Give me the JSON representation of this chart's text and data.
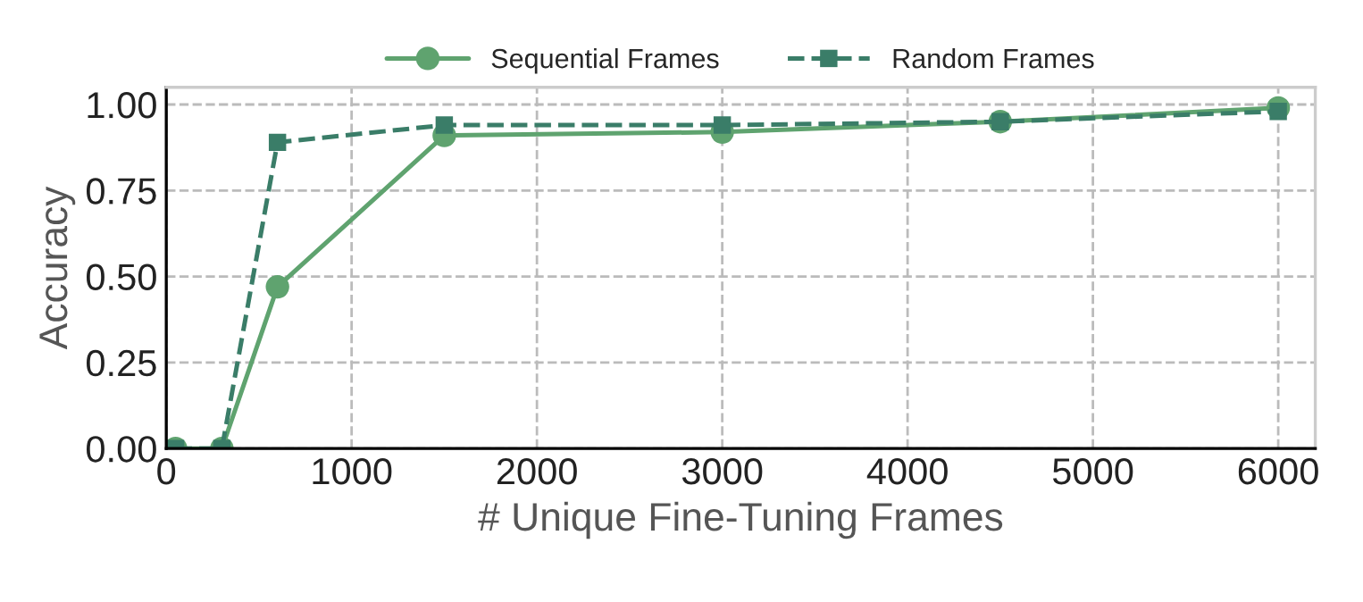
{
  "chart_data": {
    "type": "line",
    "xlabel": "# Unique Fine-Tuning Frames",
    "ylabel": "Accuracy",
    "x": [
      50,
      300,
      600,
      1500,
      3000,
      4500,
      6000
    ],
    "series": [
      {
        "name": "Sequential Frames",
        "color": "#5fa36f",
        "values": [
          0,
          0,
          0.47,
          0.91,
          0.92,
          0.95,
          0.99
        ],
        "marker": "circle",
        "line_style": "solid"
      },
      {
        "name": "Random Frames",
        "color": "#3a7d68",
        "values": [
          0,
          0,
          0.89,
          0.94,
          0.94,
          0.95,
          0.98
        ],
        "marker": "square",
        "line_style": "dashed"
      }
    ],
    "xlim": [
      0,
      6200
    ],
    "xticks": [
      0,
      1000,
      2000,
      3000,
      4000,
      5000,
      6000
    ],
    "ylim": [
      0,
      1.05
    ],
    "yticks": [
      {
        "value": 0,
        "label": "0.00"
      },
      {
        "value": 0.25,
        "label": "0.25"
      },
      {
        "value": 0.5,
        "label": "0.50"
      },
      {
        "value": 0.75,
        "label": "0.75"
      },
      {
        "value": 1.0,
        "label": "1.00"
      }
    ],
    "grid": true,
    "legend": "top"
  }
}
